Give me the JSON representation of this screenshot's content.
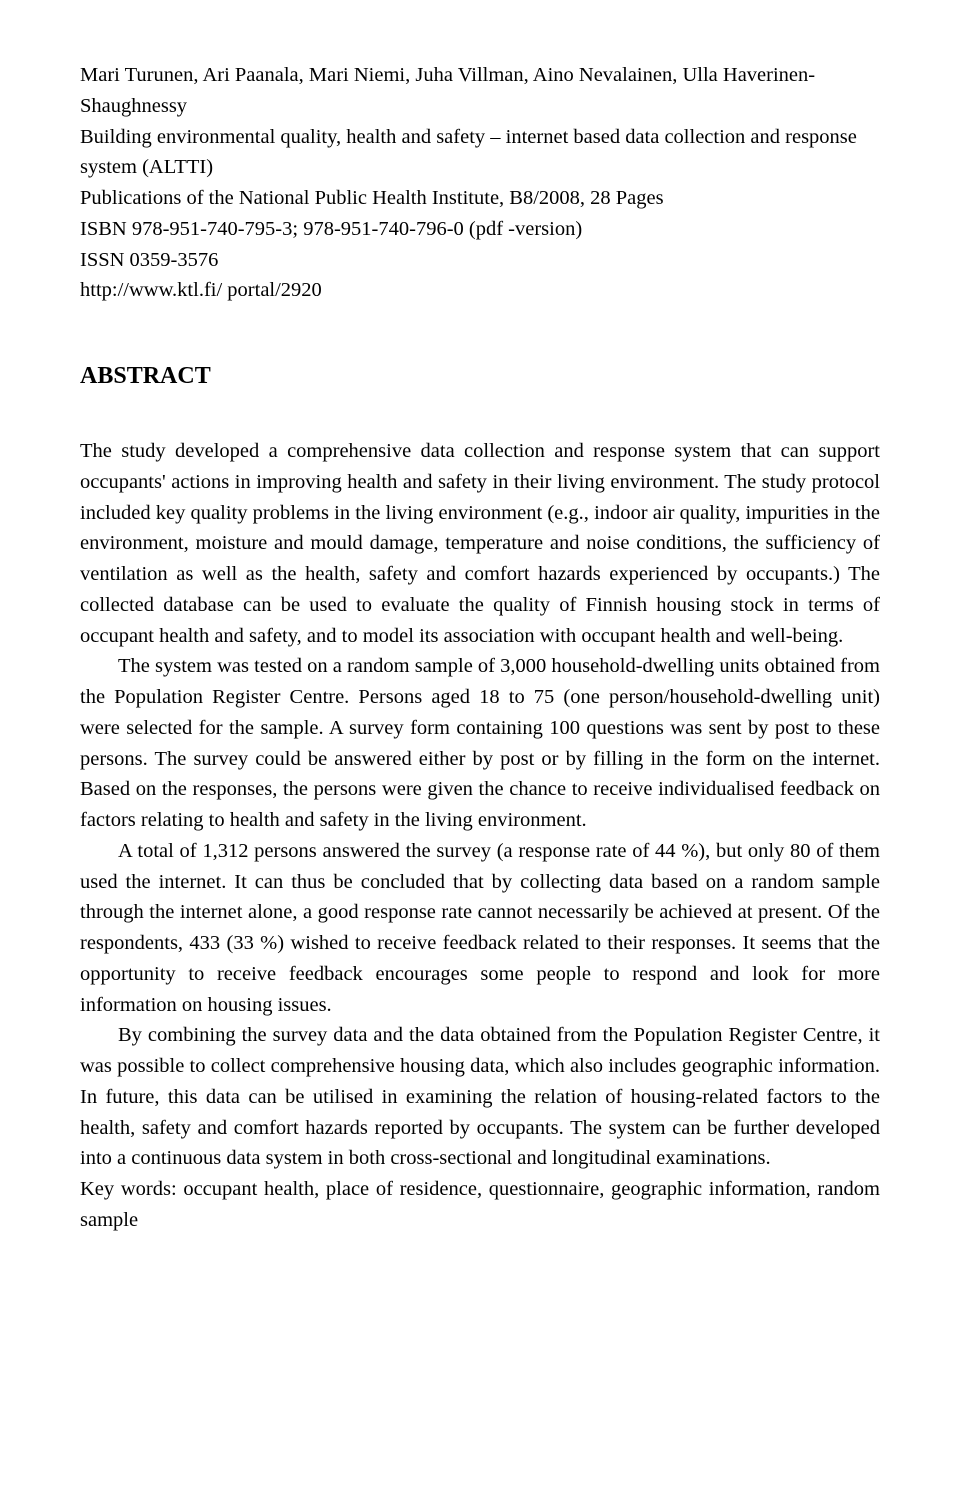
{
  "header": {
    "authors": "Mari Turunen, Ari Paanala, Mari Niemi, Juha Villman, Aino Nevalainen, Ulla Haverinen-Shaughnessy",
    "title": "Building environmental quality, health and safety – internet based data collection and response system (ALTTI)",
    "pub_line1": "Publications of the National Public Health Institute, B8/2008, 28 Pages",
    "pub_line2": "ISBN 978-951-740-795-3; 978-951-740-796-0 (pdf -version)",
    "pub_line3": "ISSN 0359-3576",
    "pub_line4": "http://www.ktl.fi/ portal/2920"
  },
  "abstract": {
    "heading": "ABSTRACT",
    "p1": "The study developed a comprehensive data collection and response system that can support occupants' actions in improving health and safety in their living environment. The study protocol included key quality problems in the living environment (e.g., indoor air quality, impurities in the environment, moisture and mould damage, temperature and noise conditions, the sufficiency of ventilation as well as the health, safety and comfort hazards experienced by occupants.) The collected database can be used to evaluate the quality of Finnish housing stock in terms of occupant health and safety, and to model its association with occupant health and well-being.",
    "p2": "The system was tested on a random sample of 3,000 household-dwelling units obtained from the Population Register Centre. Persons aged 18 to 75 (one person/household-dwelling unit) were selected for the sample. A survey form containing 100 questions was sent by post to these persons. The survey could be answered either by post or by filling in the form on the internet. Based on the responses, the persons were given the chance to receive individualised feedback on factors relating to health and safety in the living environment.",
    "p3": "A total of 1,312 persons answered the survey (a response rate of 44 %), but only 80 of them used the internet. It can thus be concluded that by collecting data based on a random sample through the internet alone, a good response rate cannot necessarily be achieved at present. Of the respondents, 433 (33 %) wished to receive feedback related to their responses. It seems that the opportunity to receive feedback encourages some people to respond and look for more information on housing issues.",
    "p4": "By combining the survey data and the data obtained from the Population Register Centre, it was possible to collect comprehensive housing data, which also includes geographic information. In future, this data can be utilised in examining the relation of housing-related factors to the health, safety and comfort hazards reported by occupants. The system can be further developed into a continuous data system in both cross-sectional and longitudinal examinations.",
    "keywords": "Key words: occupant health, place of residence, questionnaire, geographic information, random sample"
  }
}
